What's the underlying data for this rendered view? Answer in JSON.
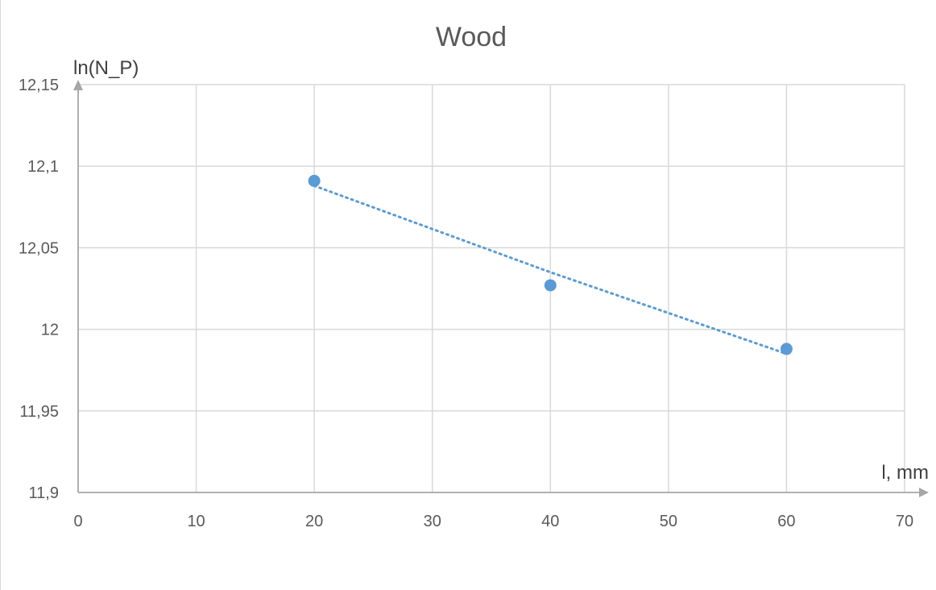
{
  "chart_data": {
    "type": "scatter",
    "title": "Wood",
    "xlabel": "l, mm",
    "ylabel": "ln(N_P)",
    "xlim": [
      0,
      70
    ],
    "ylim": [
      11.9,
      12.15
    ],
    "x_ticks": [
      0,
      10,
      20,
      30,
      40,
      50,
      60,
      70
    ],
    "x_tick_labels": [
      "0",
      "10",
      "20",
      "30",
      "40",
      "50",
      "60",
      "70"
    ],
    "y_ticks": [
      11.9,
      11.95,
      12,
      12.05,
      12.1,
      12.15
    ],
    "y_tick_labels": [
      "11,9",
      "11,95",
      "12",
      "12,05",
      "12,1",
      "12,15"
    ],
    "grid": true,
    "legend": "none",
    "series": [
      {
        "x": [
          20,
          40,
          60
        ],
        "y": [
          12.091,
          12.027,
          11.988
        ],
        "color": "#5b9bd5"
      }
    ],
    "trendline": {
      "style": "dotted",
      "color": "#5b9bd5",
      "x": [
        20,
        40,
        60
      ],
      "y": [
        12.088,
        12.035,
        11.985
      ]
    }
  }
}
